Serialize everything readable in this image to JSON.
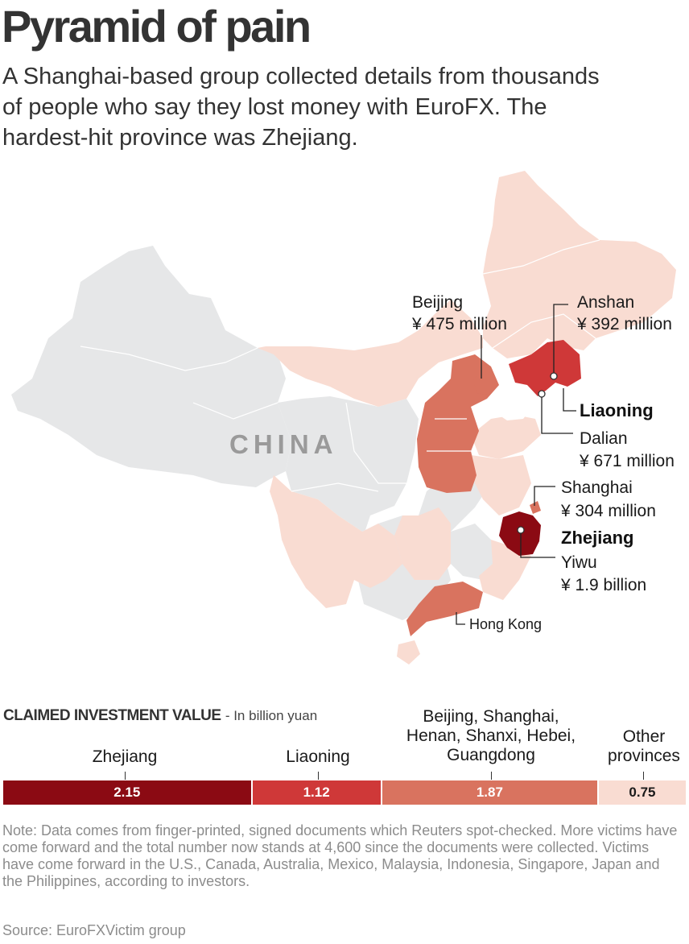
{
  "title": "Pyramid of pain",
  "subtitle": "A Shanghai-based group collected details from thousands of people who say they lost money with EuroFX. The hardest-hit province was Zhejiang.",
  "map": {
    "country_label": "CHINA",
    "colors": {
      "other_country": "#e6e7e8",
      "low": "#f9dcd2",
      "mid": "#d9735f",
      "high": "#cf3838",
      "highest": "#8b0a13",
      "water": "#ffffff"
    },
    "labels": {
      "beijing": {
        "name": "Beijing",
        "value": "¥ 475 million"
      },
      "anshan": {
        "name": "Anshan",
        "value": "¥ 392 million"
      },
      "liaoning": {
        "name": "Liaoning"
      },
      "dalian": {
        "name": "Dalian",
        "value": "¥ 671 million"
      },
      "shanghai": {
        "name": "Shanghai",
        "value": "¥ 304 million"
      },
      "zhejiang": {
        "name": "Zhejiang"
      },
      "yiwu": {
        "name": "Yiwu",
        "value": "¥ 1.9 billion"
      },
      "hongkong": {
        "name": "Hong Kong"
      }
    }
  },
  "chart": {
    "heading": "CLAIMED INVESTMENT VALUE",
    "unit": "- In billion yuan",
    "segments": [
      {
        "label": "Zhejiang",
        "value": "2.15",
        "amount": 2.15,
        "color": "#8b0a13",
        "text_color": "#ffffff"
      },
      {
        "label": "Liaoning",
        "value": "1.12",
        "amount": 1.12,
        "color": "#cf3838",
        "text_color": "#ffffff"
      },
      {
        "label": "Beijing, Shanghai, Henan, Shanxi, Hebei, Guangdong",
        "value": "1.87",
        "amount": 1.87,
        "color": "#d9735f",
        "text_color": "#ffffff"
      },
      {
        "label": "Other provinces",
        "value": "0.75",
        "amount": 0.75,
        "color": "#f9dcd2",
        "text_color": "#1a1a1a"
      }
    ]
  },
  "note": "Note: Data comes from finger-printed, signed documents which Reuters spot-checked. More victims have come forward and the total number now stands at 4,600 since the documents were collected. Victims have come forward in the U.S., Canada, Australia, Mexico, Malaysia, Indonesia, Singapore, Japan and the Philippines, according to investors.",
  "source": "Source: EuroFXVictim group"
}
